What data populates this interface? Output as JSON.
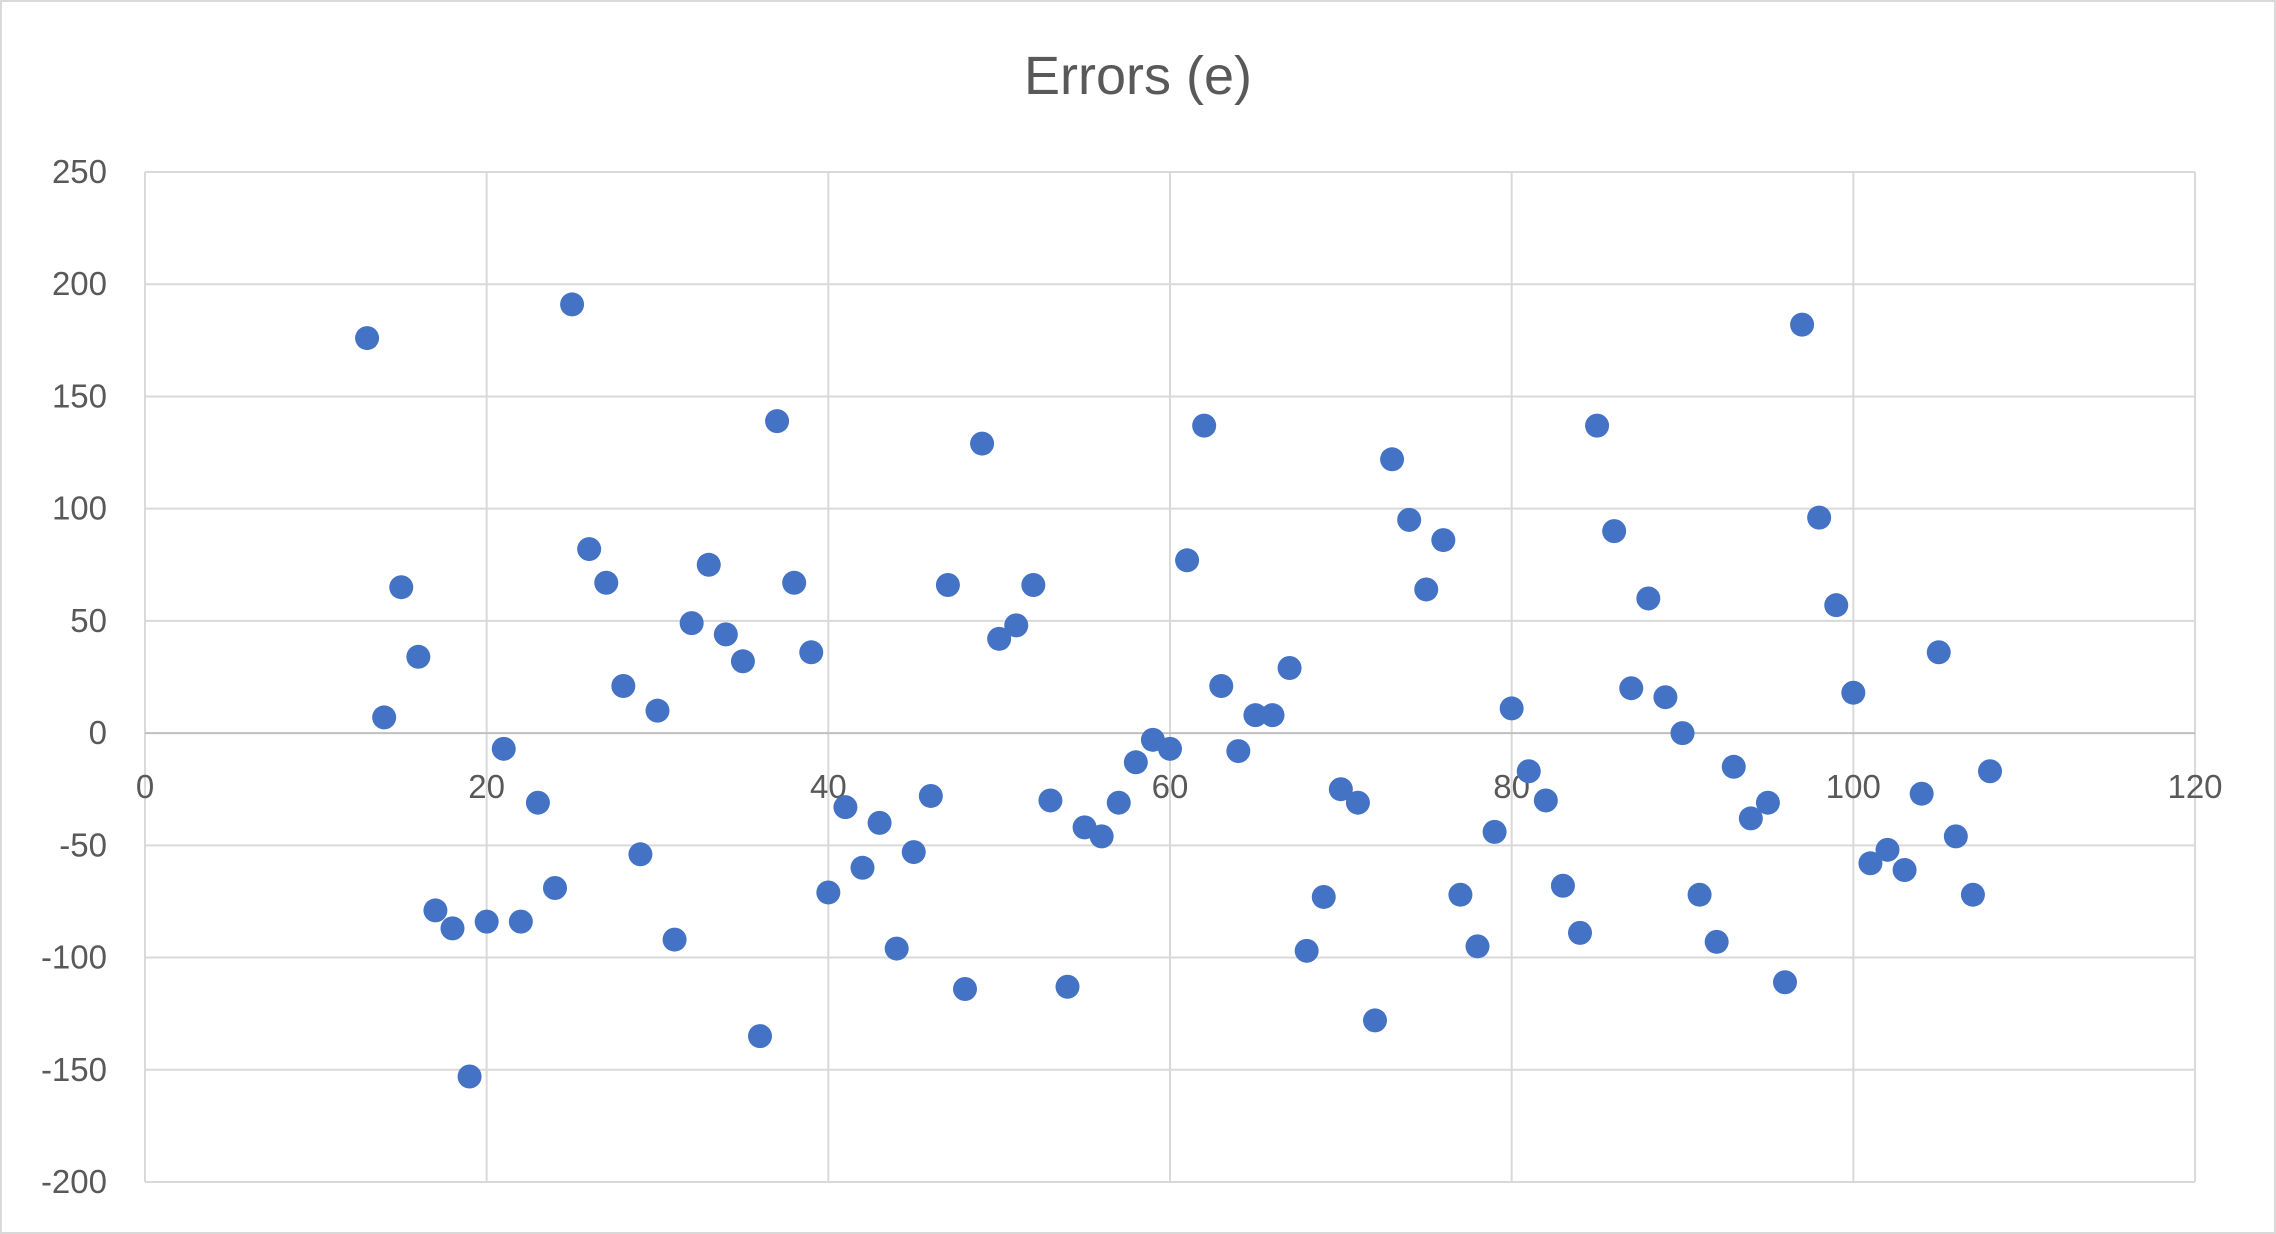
{
  "chart_data": {
    "type": "scatter",
    "title": "Errors (e)",
    "xlabel": "",
    "ylabel": "",
    "xlim": [
      0,
      120
    ],
    "ylim": [
      -200,
      250
    ],
    "x_ticks": [
      0,
      20,
      40,
      60,
      80,
      100,
      120
    ],
    "y_ticks": [
      -200,
      -150,
      -100,
      -50,
      0,
      50,
      100,
      150,
      200,
      250
    ],
    "x_tick_labels": [
      "0",
      "20",
      "40",
      "60",
      "80",
      "100",
      "120"
    ],
    "y_tick_labels": [
      "-200",
      "-150",
      "-100",
      "-50",
      "0",
      "50",
      "100",
      "150",
      "200",
      "250"
    ],
    "grid": true,
    "legend": "none",
    "marker_color": "#4472c4",
    "series": [
      {
        "points": [
          [
            13,
            176
          ],
          [
            14,
            7
          ],
          [
            15,
            65
          ],
          [
            16,
            34
          ],
          [
            17,
            -79
          ],
          [
            18,
            -87
          ],
          [
            19,
            -153
          ],
          [
            20,
            -84
          ],
          [
            21,
            -7
          ],
          [
            22,
            -84
          ],
          [
            23,
            -31
          ],
          [
            24,
            -69
          ],
          [
            25,
            191
          ],
          [
            26,
            82
          ],
          [
            27,
            67
          ],
          [
            28,
            21
          ],
          [
            29,
            -54
          ],
          [
            30,
            10
          ],
          [
            31,
            -92
          ],
          [
            32,
            49
          ],
          [
            33,
            75
          ],
          [
            34,
            44
          ],
          [
            35,
            32
          ],
          [
            36,
            -135
          ],
          [
            37,
            139
          ],
          [
            38,
            67
          ],
          [
            39,
            36
          ],
          [
            40,
            -71
          ],
          [
            41,
            -33
          ],
          [
            42,
            -60
          ],
          [
            43,
            -40
          ],
          [
            44,
            -96
          ],
          [
            45,
            -53
          ],
          [
            46,
            -28
          ],
          [
            47,
            66
          ],
          [
            48,
            -114
          ],
          [
            49,
            129
          ],
          [
            50,
            42
          ],
          [
            51,
            48
          ],
          [
            52,
            66
          ],
          [
            53,
            -30
          ],
          [
            54,
            -113
          ],
          [
            55,
            -42
          ],
          [
            56,
            -46
          ],
          [
            57,
            -31
          ],
          [
            58,
            -13
          ],
          [
            59,
            -3
          ],
          [
            60,
            -7
          ],
          [
            61,
            77
          ],
          [
            62,
            137
          ],
          [
            63,
            21
          ],
          [
            64,
            -8
          ],
          [
            65,
            8
          ],
          [
            66,
            8
          ],
          [
            67,
            29
          ],
          [
            68,
            -97
          ],
          [
            69,
            -73
          ],
          [
            70,
            -25
          ],
          [
            71,
            -31
          ],
          [
            72,
            -128
          ],
          [
            73,
            122
          ],
          [
            74,
            95
          ],
          [
            75,
            64
          ],
          [
            76,
            86
          ],
          [
            77,
            -72
          ],
          [
            78,
            -95
          ],
          [
            79,
            -44
          ],
          [
            80,
            11
          ],
          [
            81,
            -17
          ],
          [
            82,
            -30
          ],
          [
            83,
            -68
          ],
          [
            84,
            -89
          ],
          [
            85,
            137
          ],
          [
            86,
            90
          ],
          [
            87,
            20
          ],
          [
            88,
            60
          ],
          [
            89,
            16
          ],
          [
            90,
            0
          ],
          [
            91,
            -72
          ],
          [
            92,
            -93
          ],
          [
            93,
            -15
          ],
          [
            94,
            -38
          ],
          [
            95,
            -31
          ],
          [
            96,
            -111
          ],
          [
            97,
            182
          ],
          [
            98,
            96
          ],
          [
            99,
            57
          ],
          [
            100,
            18
          ],
          [
            101,
            -58
          ],
          [
            102,
            -52
          ],
          [
            103,
            -61
          ],
          [
            104,
            -27
          ],
          [
            105,
            36
          ],
          [
            106,
            -46
          ],
          [
            107,
            -72
          ],
          [
            108,
            -17
          ]
        ]
      }
    ]
  }
}
